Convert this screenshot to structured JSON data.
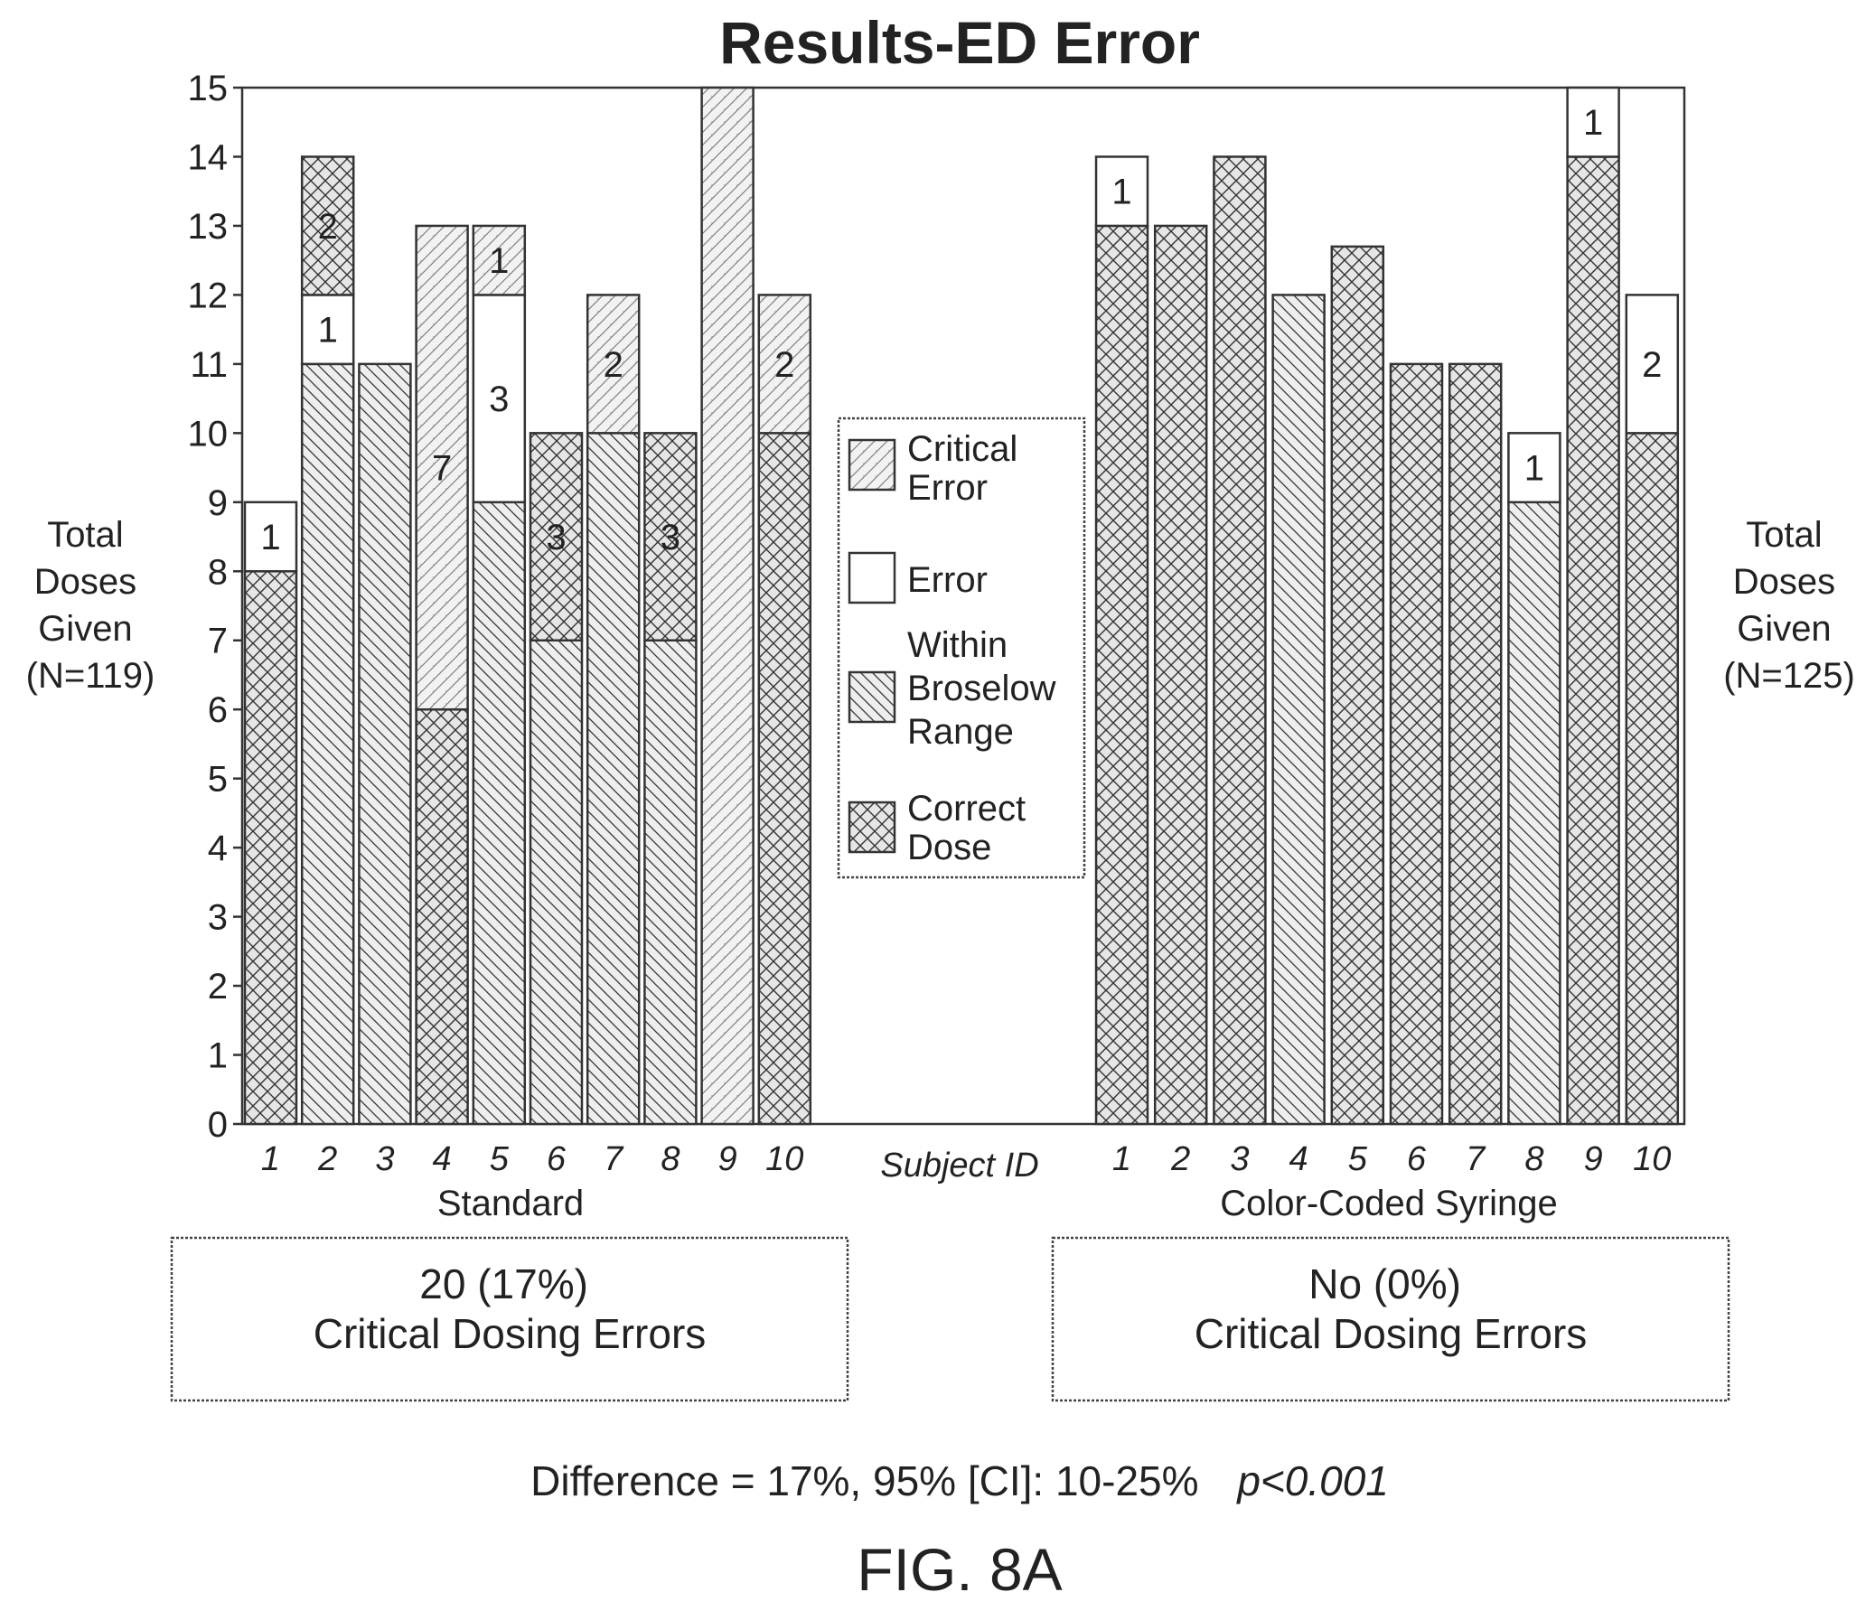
{
  "chart_data": {
    "type": "bar",
    "stacked": true,
    "title": "Results-ED Error",
    "ylim": [
      0,
      15
    ],
    "y_ticks": [
      0,
      1,
      2,
      3,
      4,
      5,
      6,
      7,
      8,
      9,
      10,
      11,
      12,
      13,
      14,
      15
    ],
    "grid": false,
    "legend_placement": "center",
    "center_xlabel": "Subject ID",
    "legend": [
      {
        "key": "critical",
        "label_lines": [
          "Critical",
          "Error"
        ],
        "pattern": "light-diagonal"
      },
      {
        "key": "error",
        "label_lines": [
          "Error"
        ],
        "pattern": "blank"
      },
      {
        "key": "within",
        "label_lines": [
          "Within",
          "Broselow",
          "Range"
        ],
        "pattern": "diagonal-hatch"
      },
      {
        "key": "correct",
        "label_lines": [
          "Correct",
          "Dose"
        ],
        "pattern": "cross-hatch"
      }
    ],
    "groups": [
      {
        "name": "Standard",
        "ylabel_lines": [
          "Total",
          "Doses",
          "Given",
          "(N=119)"
        ],
        "subjects": [
          {
            "id": "1",
            "segments": [
              {
                "type": "correct",
                "value": 8
              },
              {
                "type": "error",
                "value": 1,
                "label": "1"
              }
            ]
          },
          {
            "id": "2",
            "segments": [
              {
                "type": "within",
                "value": 11
              },
              {
                "type": "error",
                "value": 1,
                "label": "1"
              },
              {
                "type": "correct",
                "value": 2,
                "label": "2"
              }
            ]
          },
          {
            "id": "3",
            "segments": [
              {
                "type": "within",
                "value": 11
              }
            ]
          },
          {
            "id": "4",
            "segments": [
              {
                "type": "correct",
                "value": 6
              },
              {
                "type": "critical",
                "value": 7,
                "label": "7"
              }
            ]
          },
          {
            "id": "5",
            "segments": [
              {
                "type": "within",
                "value": 9
              },
              {
                "type": "error",
                "value": 3,
                "label": "3"
              },
              {
                "type": "critical",
                "value": 1,
                "label": "1"
              }
            ]
          },
          {
            "id": "6",
            "segments": [
              {
                "type": "within",
                "value": 7
              },
              {
                "type": "correct",
                "value": 3,
                "label": "3"
              }
            ]
          },
          {
            "id": "7",
            "segments": [
              {
                "type": "within",
                "value": 10
              },
              {
                "type": "critical",
                "value": 2,
                "label": "2"
              }
            ]
          },
          {
            "id": "8",
            "segments": [
              {
                "type": "within",
                "value": 7
              },
              {
                "type": "correct",
                "value": 3,
                "label": "3"
              }
            ]
          },
          {
            "id": "9",
            "segments": [
              {
                "type": "critical",
                "value": 15
              }
            ]
          },
          {
            "id": "10",
            "segments": [
              {
                "type": "correct",
                "value": 10
              },
              {
                "type": "critical",
                "value": 2,
                "label": "2"
              }
            ]
          }
        ],
        "summary_lines": [
          "20 (17%)",
          "Critical Dosing Errors"
        ]
      },
      {
        "name": "Color-Coded Syringe",
        "ylabel_lines": [
          "Total",
          "Doses",
          "Given",
          "(N=125)"
        ],
        "subjects": [
          {
            "id": "1",
            "segments": [
              {
                "type": "correct",
                "value": 13
              },
              {
                "type": "error",
                "value": 1,
                "label": "1"
              }
            ]
          },
          {
            "id": "2",
            "segments": [
              {
                "type": "correct",
                "value": 13
              }
            ]
          },
          {
            "id": "3",
            "segments": [
              {
                "type": "correct",
                "value": 14
              }
            ]
          },
          {
            "id": "4",
            "segments": [
              {
                "type": "within",
                "value": 12
              }
            ]
          },
          {
            "id": "5",
            "segments": [
              {
                "type": "correct",
                "value": 12.7
              }
            ]
          },
          {
            "id": "6",
            "segments": [
              {
                "type": "correct",
                "value": 11
              }
            ]
          },
          {
            "id": "7",
            "segments": [
              {
                "type": "correct",
                "value": 11
              }
            ]
          },
          {
            "id": "8",
            "segments": [
              {
                "type": "within",
                "value": 9
              },
              {
                "type": "error",
                "value": 1,
                "label": "1"
              }
            ]
          },
          {
            "id": "9",
            "segments": [
              {
                "type": "correct",
                "value": 14
              },
              {
                "type": "error",
                "value": 1,
                "label": "1"
              }
            ]
          },
          {
            "id": "10",
            "segments": [
              {
                "type": "correct",
                "value": 10
              },
              {
                "type": "error",
                "value": 2,
                "label": "2"
              }
            ]
          }
        ],
        "summary_lines": [
          "No (0%)",
          "Critical Dosing Errors"
        ]
      }
    ],
    "stat_line": "Difference = 17%, 95% [CI]: 10-25%",
    "p_value": "p<0.001",
    "figure_label": "FIG. 8A"
  }
}
